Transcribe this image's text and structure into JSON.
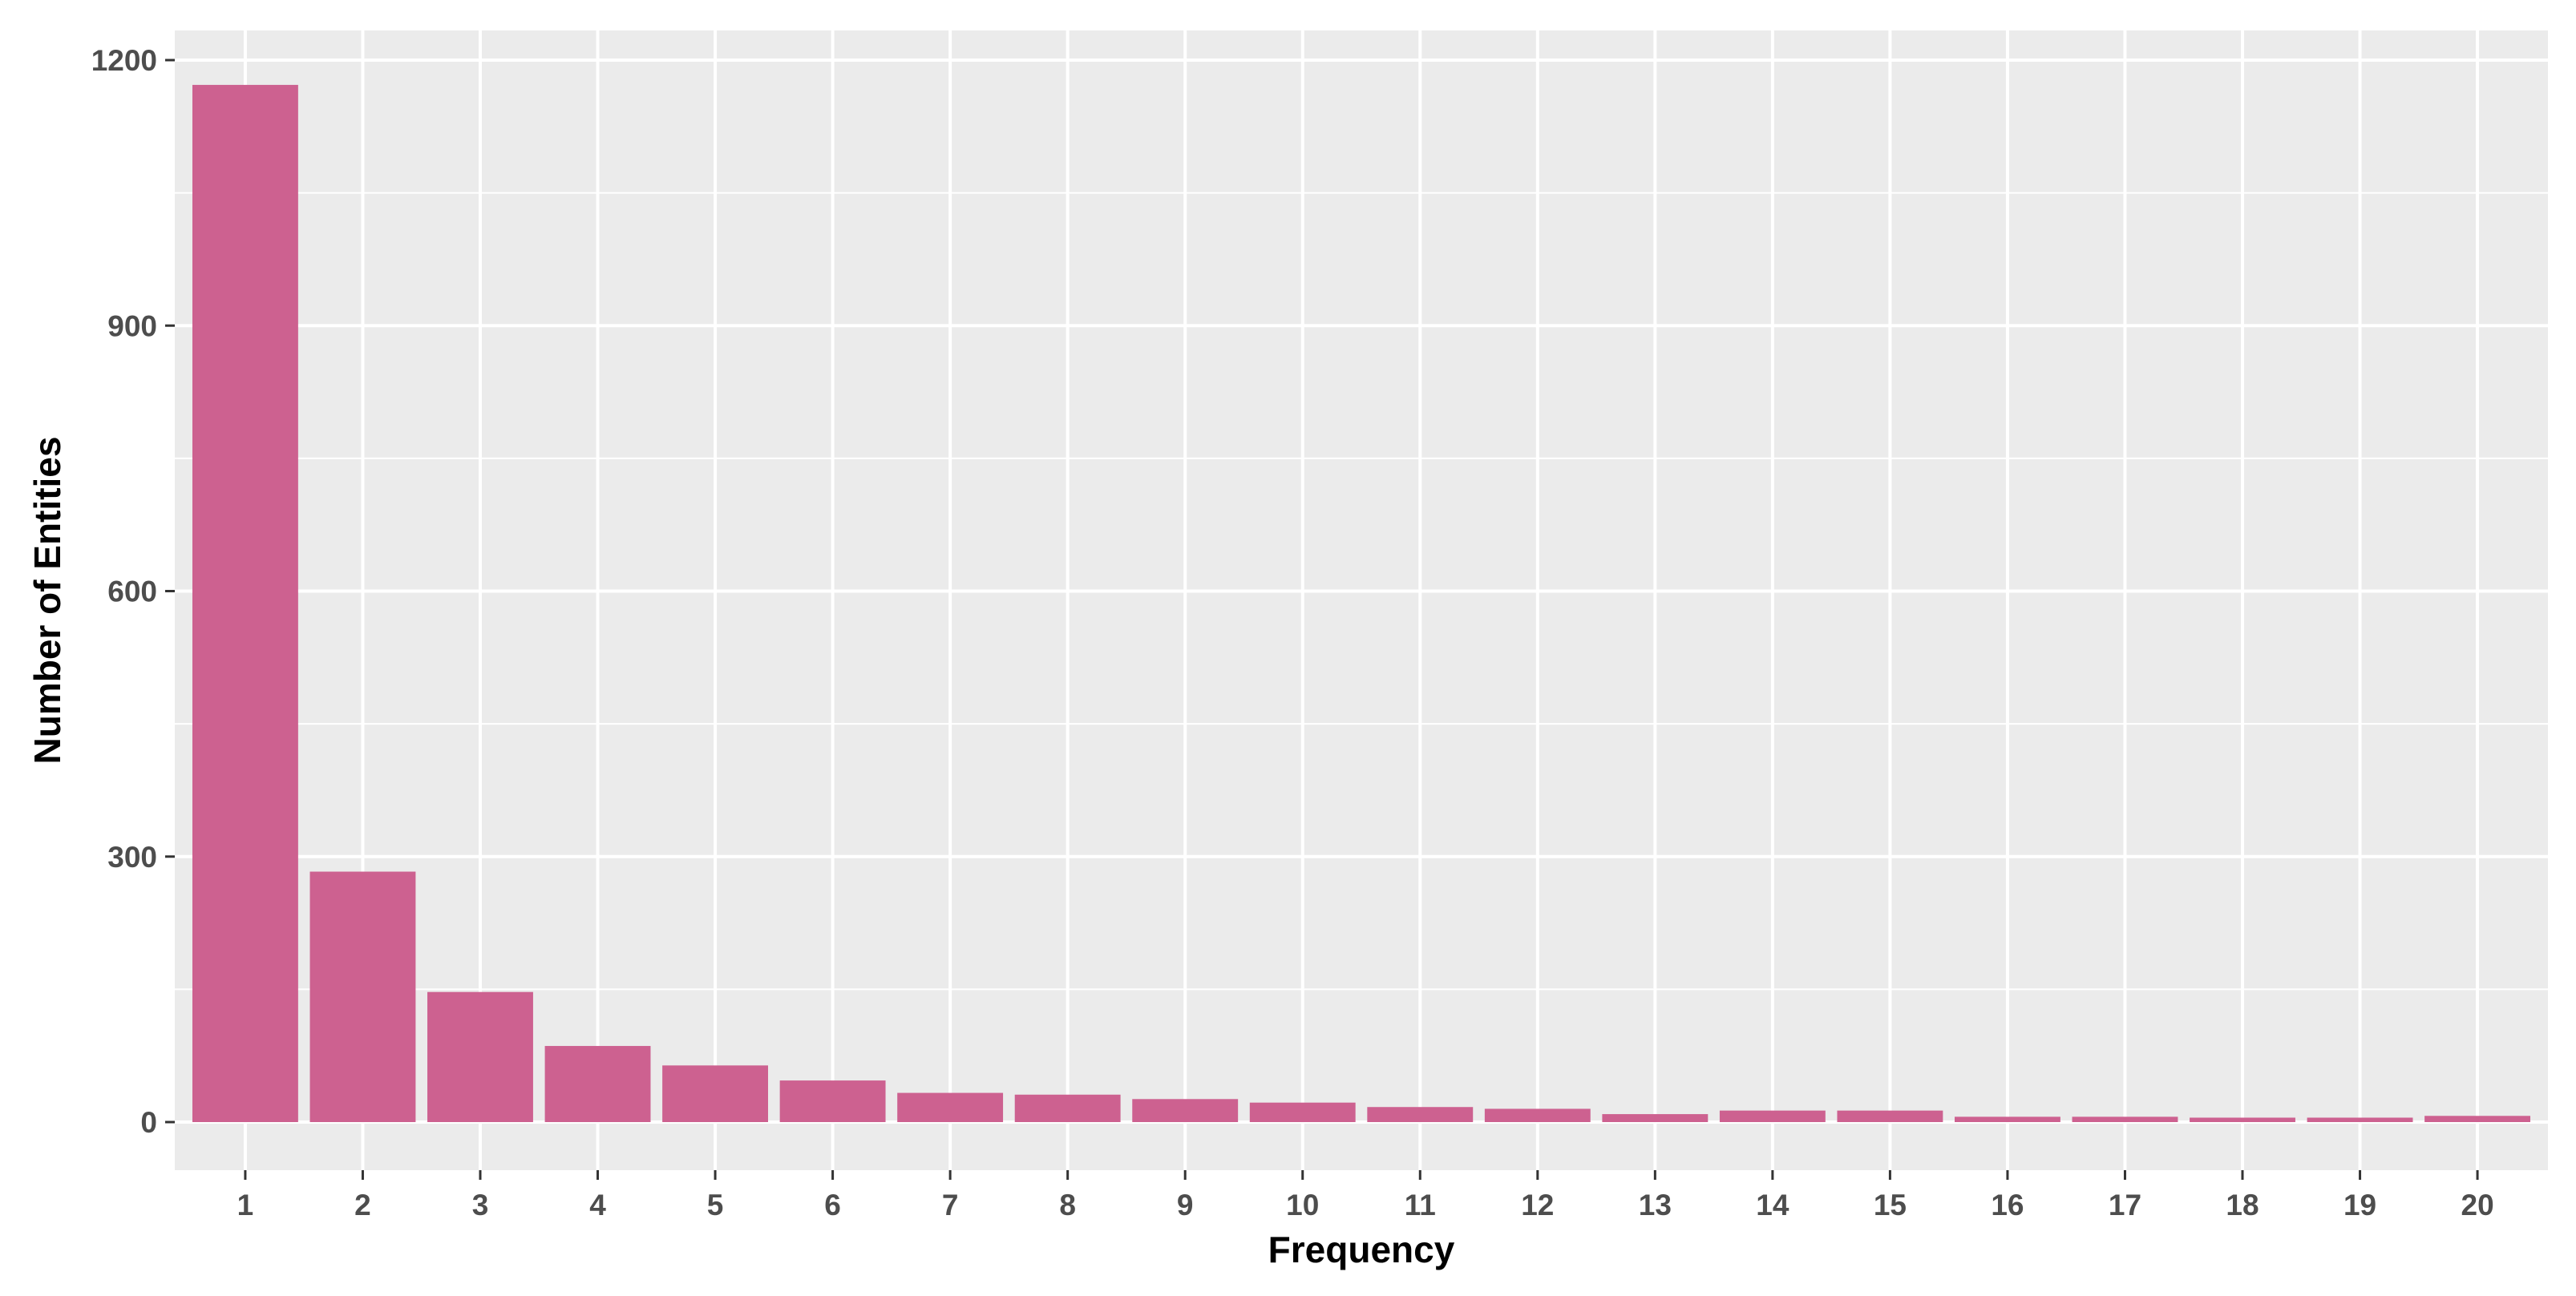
{
  "chart_data": {
    "type": "bar",
    "title": "",
    "xlabel": "Frequency",
    "ylabel": "Number of Entities",
    "categories": [
      "1",
      "2",
      "3",
      "4",
      "5",
      "6",
      "7",
      "8",
      "9",
      "10",
      "11",
      "12",
      "13",
      "14",
      "15",
      "16",
      "17",
      "18",
      "19",
      "20"
    ],
    "values": [
      1172,
      283,
      147,
      86,
      64,
      47,
      33,
      31,
      26,
      22,
      17,
      15,
      9,
      13,
      13,
      6,
      6,
      5,
      5,
      7
    ],
    "yticks": [
      "0",
      "300",
      "600",
      "900",
      "1200"
    ],
    "ytick_values": [
      0,
      300,
      600,
      900,
      1200
    ],
    "ylim": [
      -52,
      1230
    ],
    "grid": true,
    "legend": "none",
    "colors": {
      "bar": "#CD6190",
      "panel": "#EBEBEB",
      "grid": "#FFFFFF",
      "tick_text": "#4D4D4D",
      "axis_title": "#000000"
    }
  }
}
